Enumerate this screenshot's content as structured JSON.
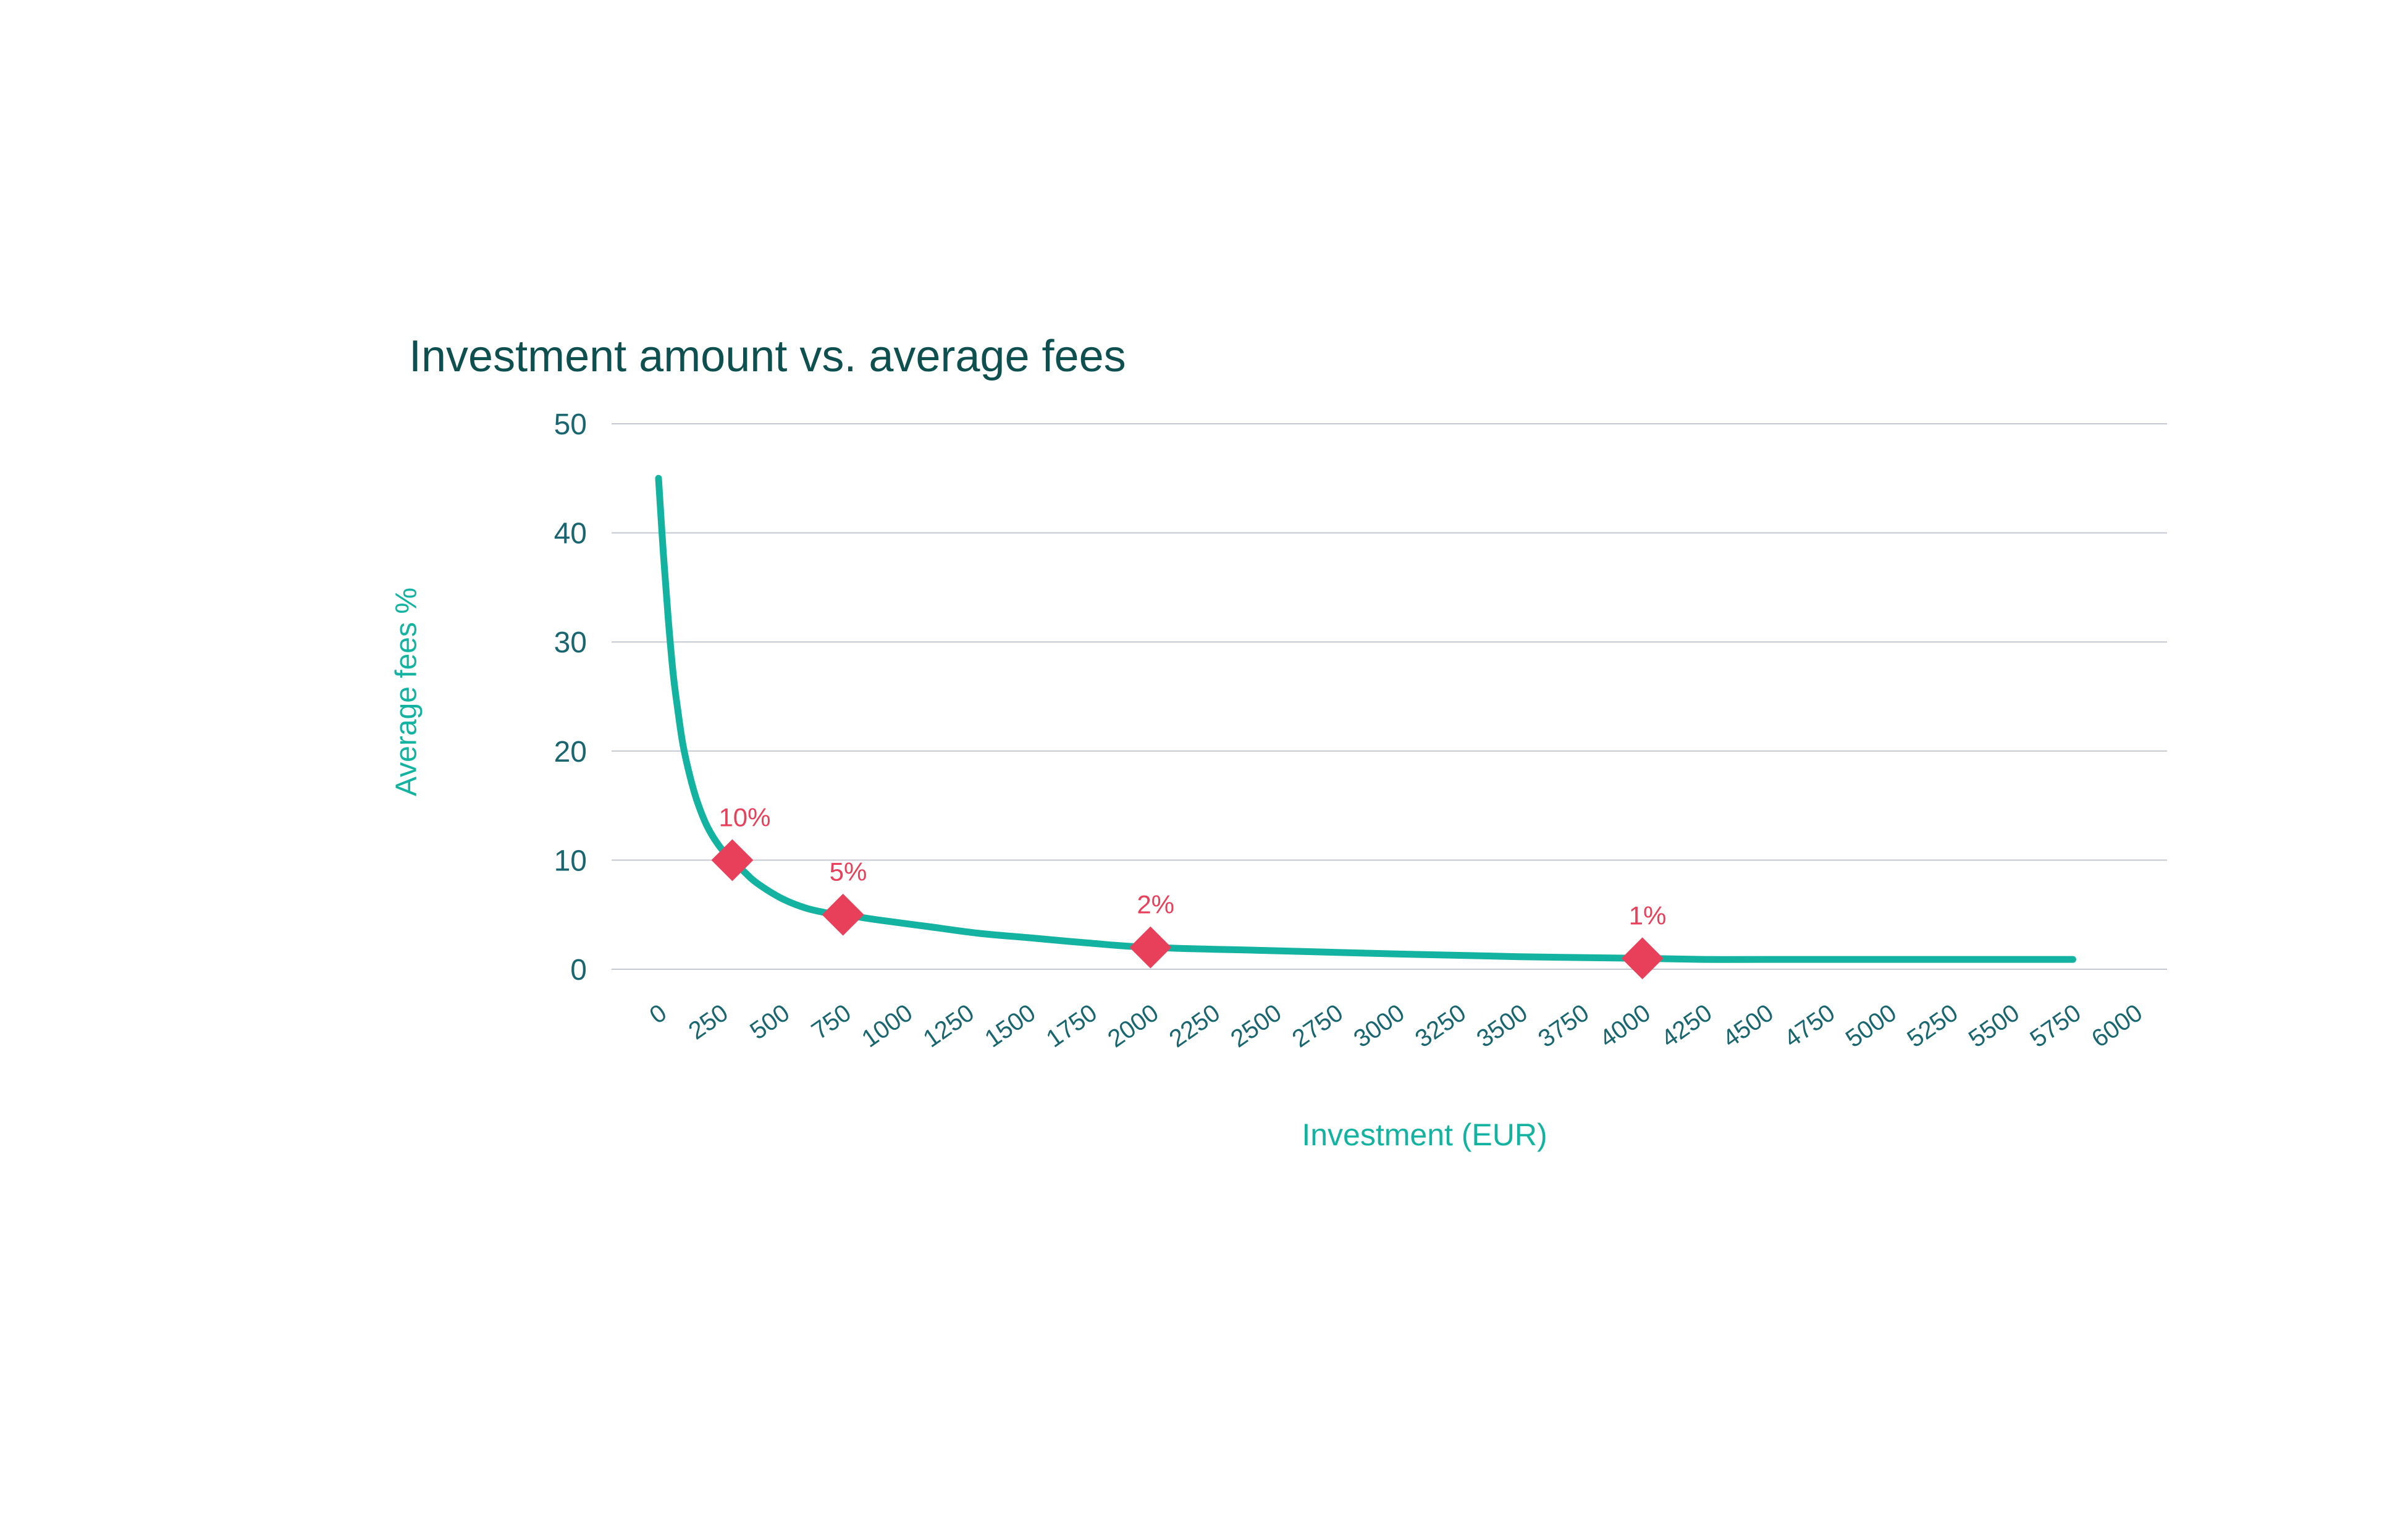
{
  "chart_data": {
    "type": "line",
    "title": "Investment amount vs. average fees",
    "xlabel": "Investment (EUR)",
    "ylabel": "Average fees %",
    "xlim": [
      0,
      6000
    ],
    "ylim": [
      0,
      50
    ],
    "x_ticks": [
      "0",
      "250",
      "500",
      "750",
      "1000",
      "1250",
      "1500",
      "1750",
      "2000",
      "2250",
      "2500",
      "2750",
      "3000",
      "3250",
      "3500",
      "3750",
      "4000",
      "4250",
      "4500",
      "4750",
      "5000",
      "5250",
      "5500",
      "5750",
      "6000"
    ],
    "y_ticks": [
      "0",
      "10",
      "20",
      "30",
      "40",
      "50"
    ],
    "grid": true,
    "legend": "none",
    "colors": {
      "line": "#14b3a1",
      "marker": "#e8405b",
      "grid": "#c5c8d2",
      "tick": "#1a6670",
      "title": "#0e4f4f"
    },
    "series": [
      {
        "x": [
          0,
          20,
          40,
          60,
          80,
          100,
          130,
          160,
          200,
          250,
          300,
          350,
          400,
          500,
          600,
          700,
          750,
          900,
          1100,
          1300,
          1500,
          1750,
          2000,
          2500,
          3000,
          3500,
          4000,
          4250,
          4500,
          5000,
          5500,
          5750
        ],
        "y": [
          45,
          38,
          32,
          27,
          23.5,
          20.5,
          17.5,
          15.2,
          13,
          11.2,
          10,
          8.9,
          7.9,
          6.5,
          5.6,
          5.1,
          5,
          4.5,
          3.9,
          3.3,
          2.9,
          2.4,
          2,
          1.7,
          1.4,
          1.15,
          1,
          0.9,
          0.9,
          0.9,
          0.9,
          0.9
        ]
      }
    ],
    "markers": [
      {
        "x": 300,
        "y": 10,
        "label": "10%"
      },
      {
        "x": 750,
        "y": 5,
        "label": "5%"
      },
      {
        "x": 2000,
        "y": 2,
        "label": "2%"
      },
      {
        "x": 4000,
        "y": 1,
        "label": "1%"
      }
    ]
  }
}
